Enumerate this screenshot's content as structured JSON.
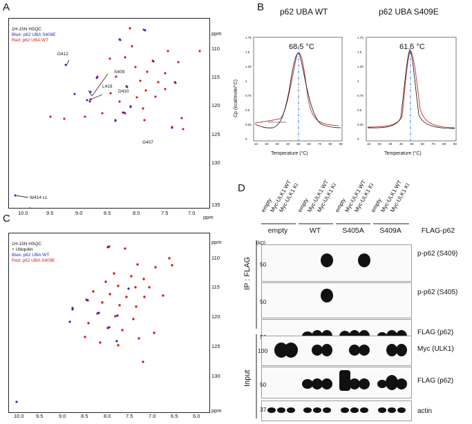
{
  "panels": {
    "a": "A",
    "b": "B",
    "c": "C",
    "d": "D"
  },
  "panel_a": {
    "legend": [
      "1H-15N HSQC",
      "Blue: p62 UBA S409E",
      "Red: p62 UBA WT"
    ],
    "x_ticks": [
      "10.0",
      "9.5",
      "9.0",
      "8.5",
      "8.0",
      "7.5",
      "7.0"
    ],
    "y_ticks": [
      "110",
      "115",
      "120",
      "125",
      "130",
      "135"
    ],
    "x_unit": "ppm",
    "y_unit": "ppm",
    "annotations": [
      "G412",
      "S409",
      "L419",
      "D410",
      "G407",
      "W414 ε1"
    ]
  },
  "panel_b": {
    "left_title": "p62 UBA WT",
    "right_title": "p62 UBA S409E",
    "left_tm": "68.5 °C",
    "right_tm": "61.5 °C",
    "y_label": "Cp (kcal/mole/°C)",
    "x_label": "Temperature (°C)",
    "y_ticks": [
      "0",
      "0.25",
      "0.5",
      "0.75",
      "1",
      "1.25",
      "1.5",
      "1.75"
    ],
    "x_ticks": [
      "10",
      "20",
      "30",
      "40",
      "50",
      "60",
      "70",
      "80",
      "90"
    ],
    "small_note": "buffer baseline"
  },
  "panel_c": {
    "legend": [
      "1H-15N HSQC",
      "+ Ubiquitin",
      "Blue: p62 UBA WT",
      "Red: p62 UBA S409E"
    ],
    "x_ticks": [
      "10.0",
      "9.5",
      "9.0",
      "8.5",
      "8.0",
      "7.5",
      "7.0",
      "6.5",
      "6.0"
    ],
    "y_ticks": [
      "110",
      "115",
      "120",
      "125",
      "130"
    ],
    "x_unit": "ppm",
    "y_unit": "ppm"
  },
  "panel_d": {
    "lanes": [
      "empty",
      "Myc-ULK1 WT",
      "Myc-ULK1 KI",
      "empty",
      "Myc-ULK1 WT",
      "Myc-ULK1 KI",
      "empty",
      "Myc-ULK1 WT",
      "Myc-ULK1 KI",
      "empty",
      "Myc-ULK1 WT",
      "Myc-ULK1 KI"
    ],
    "groups": [
      "empty",
      "WT",
      "S405A",
      "S409A"
    ],
    "group_header": "FLAG-p62",
    "kd_label": "(kD)",
    "ip_label": "IP : FLAG",
    "input_label": "Input",
    "rows": [
      {
        "label": "p-p62 (S409)",
        "marker": "50"
      },
      {
        "label": "p-p62 (S405)",
        "marker": "50"
      },
      {
        "label": "FLAG (p62)",
        "marker": "50"
      },
      {
        "label": "Myc (ULK1)",
        "marker": "100"
      },
      {
        "label": "FLAG (p62)",
        "marker": "50"
      },
      {
        "label": "actin",
        "marker": "37"
      }
    ]
  }
}
